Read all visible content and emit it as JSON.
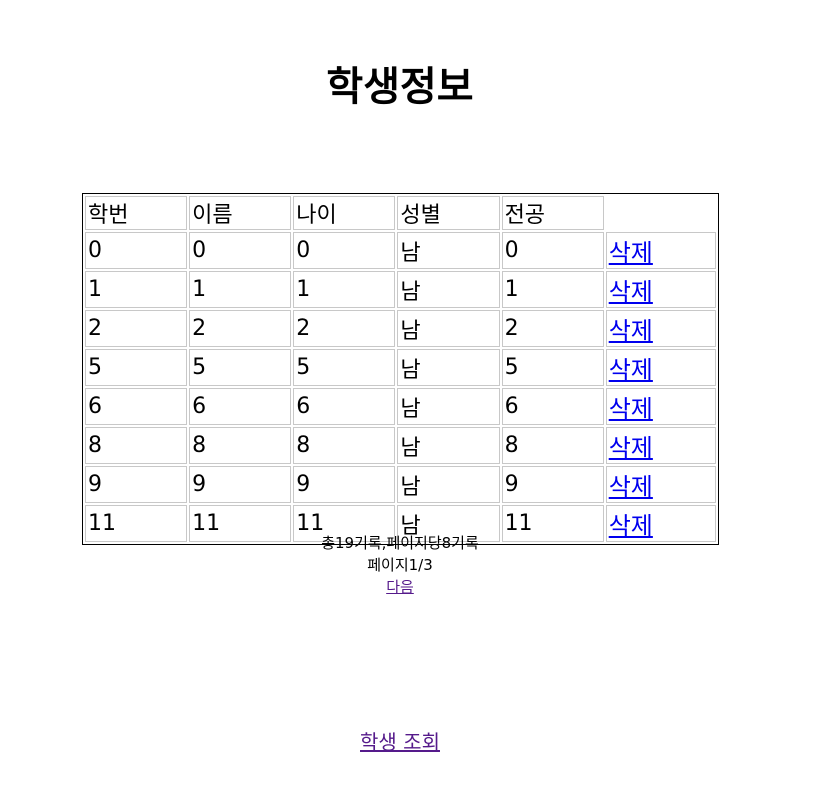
{
  "page": {
    "title": "학생정보"
  },
  "table": {
    "headers": [
      "학번",
      "이름",
      "나이",
      "성별",
      "전공"
    ],
    "rows": [
      {
        "id": "0",
        "name": "0",
        "age": "0",
        "gender": "남",
        "major": "0",
        "action": "삭제"
      },
      {
        "id": "1",
        "name": "1",
        "age": "1",
        "gender": "남",
        "major": "1",
        "action": "삭제"
      },
      {
        "id": "2",
        "name": "2",
        "age": "2",
        "gender": "남",
        "major": "2",
        "action": "삭제"
      },
      {
        "id": "5",
        "name": "5",
        "age": "5",
        "gender": "남",
        "major": "5",
        "action": "삭제"
      },
      {
        "id": "6",
        "name": "6",
        "age": "6",
        "gender": "남",
        "major": "6",
        "action": "삭제"
      },
      {
        "id": "8",
        "name": "8",
        "age": "8",
        "gender": "남",
        "major": "8",
        "action": "삭제"
      },
      {
        "id": "9",
        "name": "9",
        "age": "9",
        "gender": "남",
        "major": "9",
        "action": "삭제"
      },
      {
        "id": "11",
        "name": "11",
        "age": "11",
        "gender": "남",
        "major": "11",
        "action": "삭제"
      }
    ]
  },
  "pagination": {
    "summary": "총19기록,페이지당8기록",
    "page_info": "페이지1/3",
    "next_label": "다음"
  },
  "footer": {
    "query_link": "학생 조회"
  },
  "colors": {
    "link": "#0000ee",
    "visited_link": "#551a8b"
  }
}
